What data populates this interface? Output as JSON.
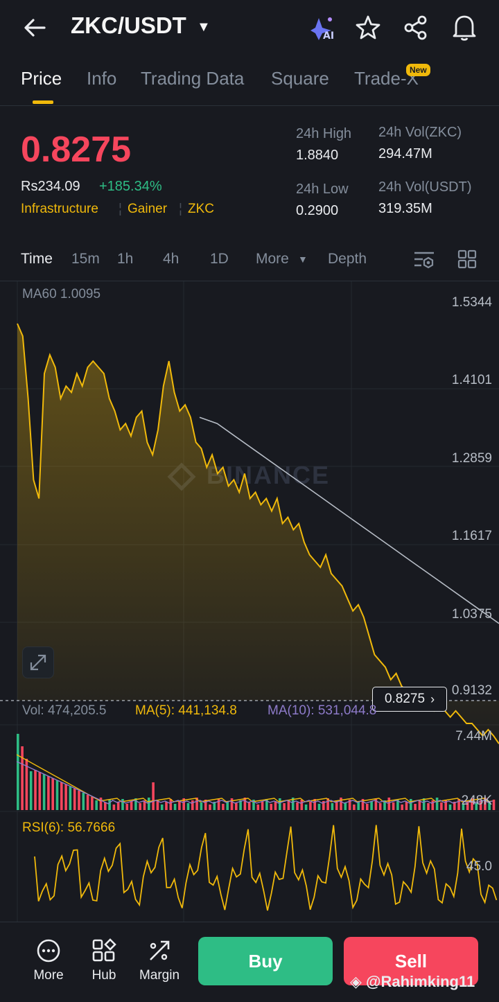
{
  "header": {
    "pair": "ZKC/USDT"
  },
  "tabs": [
    {
      "label": "Price"
    },
    {
      "label": "Info"
    },
    {
      "label": "Trading Data"
    },
    {
      "label": "Square"
    },
    {
      "label": "Trade-X",
      "badge": "New"
    }
  ],
  "ticker": {
    "last_price": "0.8275",
    "fiat_price": "Rs234.09",
    "change": "+185.34%",
    "tags": [
      "Infrastructure",
      "Gainer",
      "ZKC"
    ],
    "high_label": "24h High",
    "high": "1.8840",
    "low_label": "24h Low",
    "low": "0.2900",
    "vol_base_label": "24h Vol(ZKC)",
    "vol_base": "294.47M",
    "vol_quote_label": "24h Vol(USDT)",
    "vol_quote": "319.35M"
  },
  "timeframes": [
    "Time",
    "15m",
    "1h",
    "4h",
    "1D",
    "More",
    "Depth"
  ],
  "chart": {
    "ma60_label": "MA60 1.0095",
    "watermark": "BINANCE",
    "price_axis": [
      "1.5344",
      "1.4101",
      "1.2859",
      "1.1617",
      "1.0375",
      "0.9132"
    ],
    "current_price_tag": "0.8275",
    "volume_label": "Vol: 474,205.5",
    "ma5_label": "MA(5): 441,134.8",
    "ma10_label": "MA(10): 531,044.8",
    "volume_axis": [
      "7.44M",
      "248K"
    ],
    "rsi_label": "RSI(6): 56.7666",
    "rsi_axis": "45.0"
  },
  "chart_data": {
    "type": "line",
    "price_range": [
      0.9132,
      1.5344
    ],
    "price_series": [
      1.5,
      1.48,
      1.38,
      1.25,
      1.22,
      1.42,
      1.45,
      1.43,
      1.38,
      1.4,
      1.39,
      1.42,
      1.4,
      1.43,
      1.44,
      1.43,
      1.42,
      1.38,
      1.36,
      1.33,
      1.34,
      1.32,
      1.35,
      1.36,
      1.31,
      1.29,
      1.33,
      1.4,
      1.44,
      1.39,
      1.36,
      1.37,
      1.35,
      1.31,
      1.3,
      1.27,
      1.29,
      1.26,
      1.27,
      1.24,
      1.25,
      1.23,
      1.26,
      1.22,
      1.23,
      1.21,
      1.22,
      1.2,
      1.22,
      1.18,
      1.19,
      1.17,
      1.18,
      1.15,
      1.13,
      1.12,
      1.11,
      1.13,
      1.1,
      1.09,
      1.08,
      1.06,
      1.04,
      1.05,
      1.03,
      1.0,
      0.97,
      0.96,
      0.95,
      0.93,
      0.94,
      0.92,
      0.91,
      0.9,
      0.89,
      0.9,
      0.89,
      0.88,
      0.89,
      0.88,
      0.87,
      0.88,
      0.87,
      0.86,
      0.86,
      0.85,
      0.84,
      0.85,
      0.84,
      0.8275
    ],
    "ma60": [
      1.35,
      1.34,
      1.32,
      1.3,
      1.28,
      1.26,
      1.24,
      1.22,
      1.2,
      1.18,
      1.16,
      1.14,
      1.12,
      1.1,
      1.08,
      1.06,
      1.04,
      1.02
    ],
    "colors": {
      "up": "#2EBD85",
      "down": "#F6465D",
      "price_line": "#F0B90B",
      "ma60": "#B7BDC6",
      "ma10": "#8E7BCA"
    }
  },
  "bottom": {
    "more": "More",
    "hub": "Hub",
    "margin": "Margin",
    "buy": "Buy",
    "sell": "Sell",
    "watermark": "@Rahimking11"
  }
}
